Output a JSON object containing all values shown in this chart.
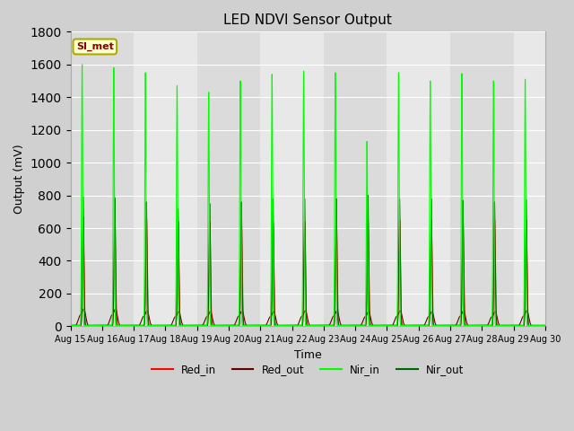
{
  "title": "LED NDVI Sensor Output",
  "xlabel": "Time",
  "ylabel": "Output (mV)",
  "ylim": [
    0,
    1800
  ],
  "bg_color": "#d0d0d0",
  "plot_bg_color": "#e8e8e8",
  "annotation_text": "SI_met",
  "annotation_bg": "#ffffcc",
  "annotation_border": "#aaaa00",
  "annotation_text_color": "#880000",
  "red_in_color": "#ff0000",
  "red_out_color": "#660000",
  "nir_in_color": "#00ff00",
  "nir_out_color": "#006600",
  "legend_labels": [
    "Red_in",
    "Red_out",
    "Nir_in",
    "Nir_out"
  ],
  "nir_in_amps": [
    1600,
    1580,
    1550,
    1470,
    1430,
    1500,
    1540,
    1560,
    1550,
    1130,
    1550,
    1500,
    1545,
    1500,
    1510
  ],
  "nir_out_amps": [
    790,
    785,
    760,
    720,
    750,
    760,
    780,
    780,
    780,
    800,
    780,
    780,
    770,
    760,
    775
  ],
  "red_in_amps": [
    670,
    670,
    665,
    640,
    640,
    640,
    640,
    640,
    650,
    650,
    650,
    650,
    650,
    650,
    650
  ],
  "red_out_amps": [
    100,
    100,
    90,
    85,
    85,
    90,
    85,
    90,
    90,
    85,
    90,
    85,
    90,
    85,
    90
  ]
}
